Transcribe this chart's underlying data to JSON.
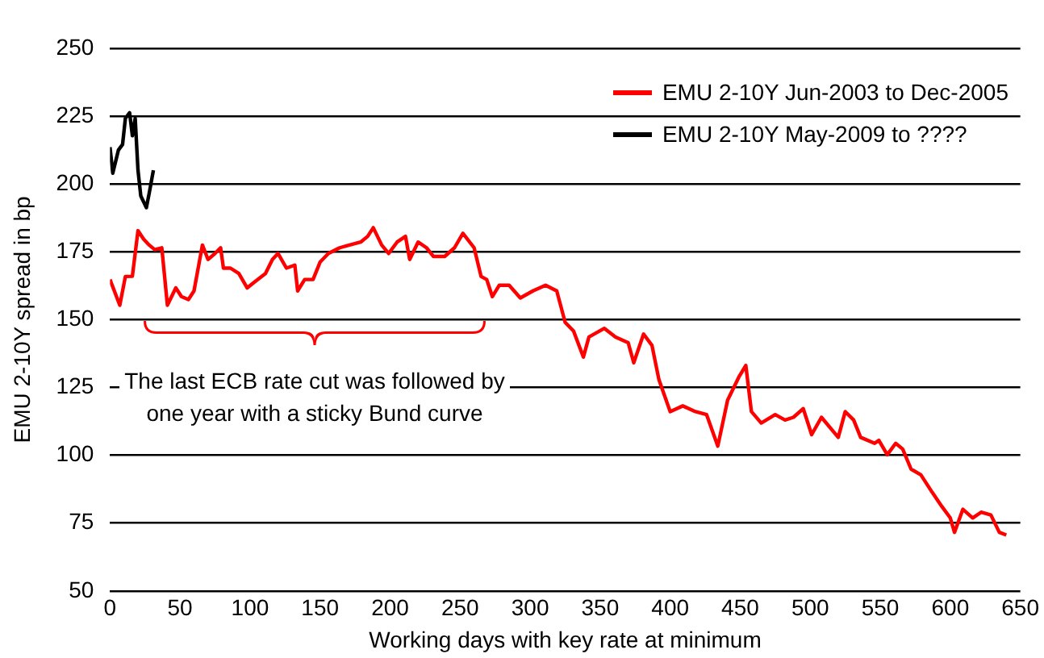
{
  "chart_data": {
    "type": "line",
    "xlabel": "Working days with key rate at minimum",
    "ylabel": "EMU 2-10Y spread in bp",
    "xlim": [
      0,
      650
    ],
    "xticks": [
      0,
      50,
      100,
      150,
      200,
      250,
      300,
      350,
      400,
      450,
      500,
      550,
      600,
      650
    ],
    "ylim": [
      50,
      250
    ],
    "yticks": [
      50,
      75,
      100,
      125,
      150,
      175,
      200,
      225,
      250
    ],
    "grid": "y",
    "legend": "top right",
    "marker": "none",
    "line_style": "solid",
    "annotations": [
      "The last ECB rate cut was followed by\none year with a sticky Bund curve"
    ],
    "series": [
      {
        "name": "EMU 2-10Y Jun-2003 to Dec-2005",
        "color": "#ff0000",
        "x": [
          0,
          7,
          11,
          16,
          20,
          24,
          28,
          32,
          37,
          41,
          47,
          51,
          56,
          60,
          66,
          70,
          75,
          79,
          81,
          86,
          92,
          98,
          103,
          111,
          116,
          120,
          126,
          132,
          134,
          139,
          145,
          150,
          156,
          164,
          171,
          179,
          184,
          188,
          194,
          199,
          205,
          211,
          214,
          220,
          226,
          231,
          239,
          246,
          252,
          260,
          265,
          269,
          273,
          278,
          285,
          293,
          302,
          311,
          319,
          325,
          331,
          338,
          342,
          353,
          361,
          370,
          374,
          381,
          387,
          392,
          400,
          409,
          418,
          426,
          434,
          441,
          449,
          454,
          458,
          465,
          475,
          482,
          488,
          495,
          501,
          508,
          520,
          525,
          531,
          536,
          546,
          549,
          555,
          561,
          566,
          572,
          579,
          587,
          594,
          600,
          603,
          609,
          616,
          622,
          629,
          635,
          640
        ],
        "values": [
          164.8,
          155.3,
          165.9,
          166,
          182.8,
          179.7,
          177.5,
          175.8,
          176.5,
          155.3,
          161.7,
          158.5,
          157.4,
          160.6,
          177.5,
          172.2,
          174.4,
          176.5,
          169,
          169,
          167,
          161.7,
          163.8,
          167,
          172.2,
          174.4,
          169,
          170.1,
          160.6,
          164.8,
          164.8,
          171.2,
          174.4,
          176.5,
          177.5,
          178.6,
          180.7,
          183.9,
          177.5,
          174.4,
          178.6,
          180.7,
          172.2,
          178.6,
          176.5,
          173.3,
          173.3,
          176.5,
          181.8,
          176.5,
          165.9,
          164.8,
          158.5,
          162.7,
          162.7,
          158,
          160.6,
          162.7,
          160.6,
          149,
          145.8,
          136.2,
          143.6,
          146.8,
          143.6,
          141.5,
          134.1,
          144.7,
          140.5,
          127.8,
          116.1,
          118.2,
          116.1,
          115,
          103.4,
          120.3,
          128.8,
          133.1,
          116.1,
          111.9,
          115,
          113,
          114,
          117.2,
          107.6,
          114,
          106.6,
          116.1,
          113,
          106.6,
          104.4,
          105.5,
          100.2,
          104.4,
          102.3,
          94.9,
          92.8,
          86.4,
          81.1,
          76.9,
          71.6,
          80.1,
          76.9,
          79,
          78,
          71.6,
          70.6
        ]
      },
      {
        "name": "EMU 2-10Y May-2009 to ????",
        "color": "#000000",
        "x": [
          0,
          2,
          6,
          9,
          11,
          14,
          16,
          18,
          20,
          22,
          26,
          28,
          31
        ],
        "values": [
          213.6,
          204,
          212.5,
          214.6,
          224.2,
          226.3,
          217.8,
          224.2,
          205.1,
          195.6,
          191.3,
          196.6,
          205.1
        ]
      }
    ]
  }
}
